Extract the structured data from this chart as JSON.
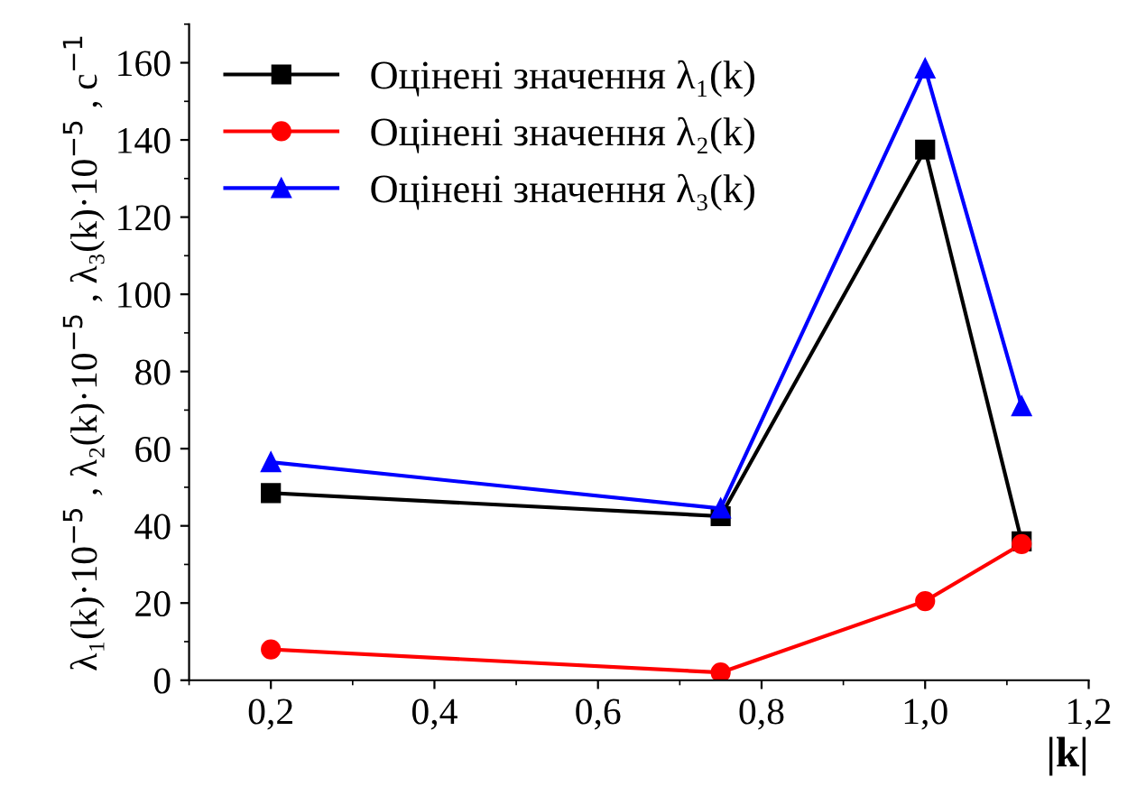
{
  "chart_data": {
    "type": "line",
    "xlabel": "|k|",
    "ylabel": "λ₁(k)·10$^{−5}$ , λ₂(k)·10$^{−5}$ , λ₃(k)·10$^{−5}$ , с$^{−1}$",
    "x": [
      0.2,
      0.75,
      1.0,
      1.118
    ],
    "series": [
      {
        "name": "Оцінені значення λ₁(k)",
        "color": "#000000",
        "marker": "square",
        "values": [
          48.5,
          42.5,
          137.5,
          36
        ]
      },
      {
        "name": "Оцінені значення λ₂(k)",
        "color": "#ff0000",
        "marker": "circle",
        "values": [
          8,
          2,
          20.5,
          35.3
        ]
      },
      {
        "name": "Оцінені значення λ₃(k)",
        "color": "#0000ff",
        "marker": "triangle",
        "values": [
          56.5,
          44.5,
          158.5,
          71
        ]
      }
    ],
    "xlim": [
      0.1,
      1.2
    ],
    "ylim": [
      0,
      170
    ],
    "xticks": [
      {
        "value": 0.2,
        "label": "0,2"
      },
      {
        "value": 0.4,
        "label": "0,4"
      },
      {
        "value": 0.6,
        "label": "0,6"
      },
      {
        "value": 0.8,
        "label": "0,8"
      },
      {
        "value": 1.0,
        "label": "1,0"
      },
      {
        "value": 1.2,
        "label": "1,2"
      }
    ],
    "yticks": [
      0,
      20,
      40,
      60,
      80,
      100,
      120,
      140,
      160
    ],
    "grid": false,
    "legend": "top left",
    "line_style": "solid"
  }
}
